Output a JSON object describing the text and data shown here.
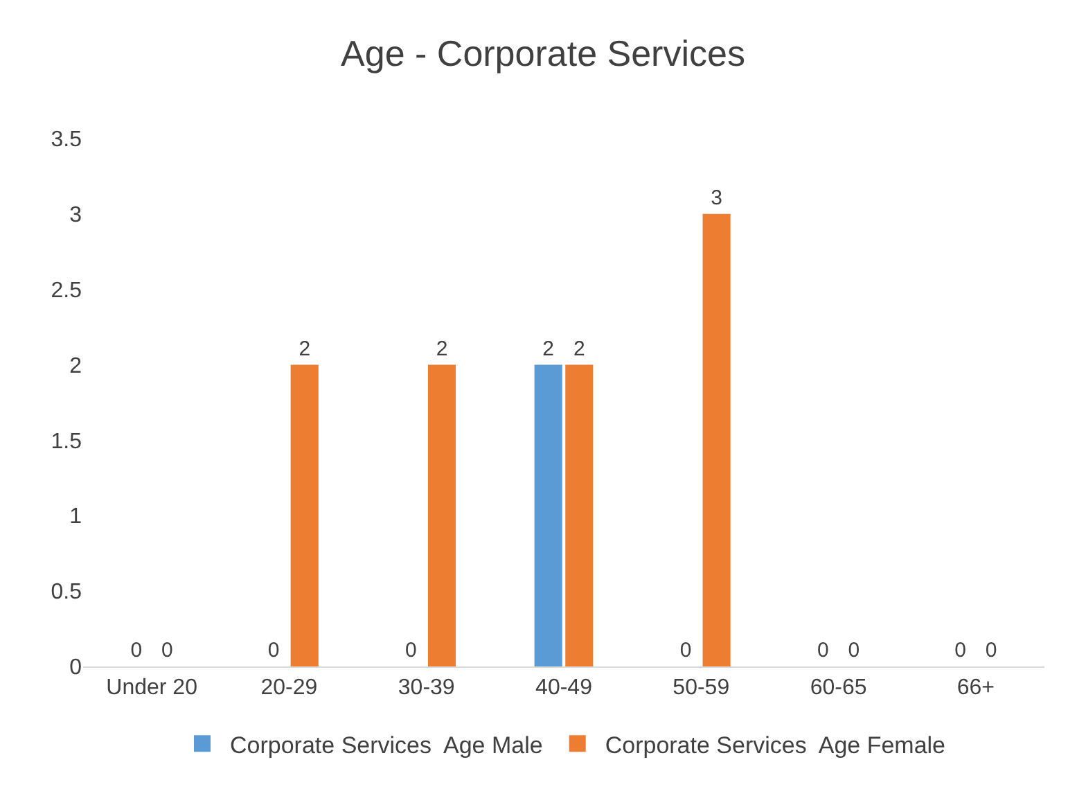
{
  "chart_data": {
    "type": "bar",
    "title": "Age - Corporate Services",
    "categories": [
      "Under 20",
      "20-29",
      "30-39",
      "40-49",
      "50-59",
      "60-65",
      "66+"
    ],
    "series": [
      {
        "name": "Corporate Services  Age Male",
        "color": "#5b9bd5",
        "values": [
          0,
          0,
          0,
          2,
          0,
          0,
          0
        ]
      },
      {
        "name": "Corporate Services  Age Female",
        "color": "#ed7d31",
        "values": [
          0,
          2,
          2,
          2,
          3,
          0,
          0
        ]
      }
    ],
    "ylim": [
      0,
      3.5
    ],
    "yticks": [
      0,
      0.5,
      1,
      1.5,
      2,
      2.5,
      3,
      3.5
    ],
    "grid": false,
    "legend": "bottom",
    "data_labels": true
  }
}
